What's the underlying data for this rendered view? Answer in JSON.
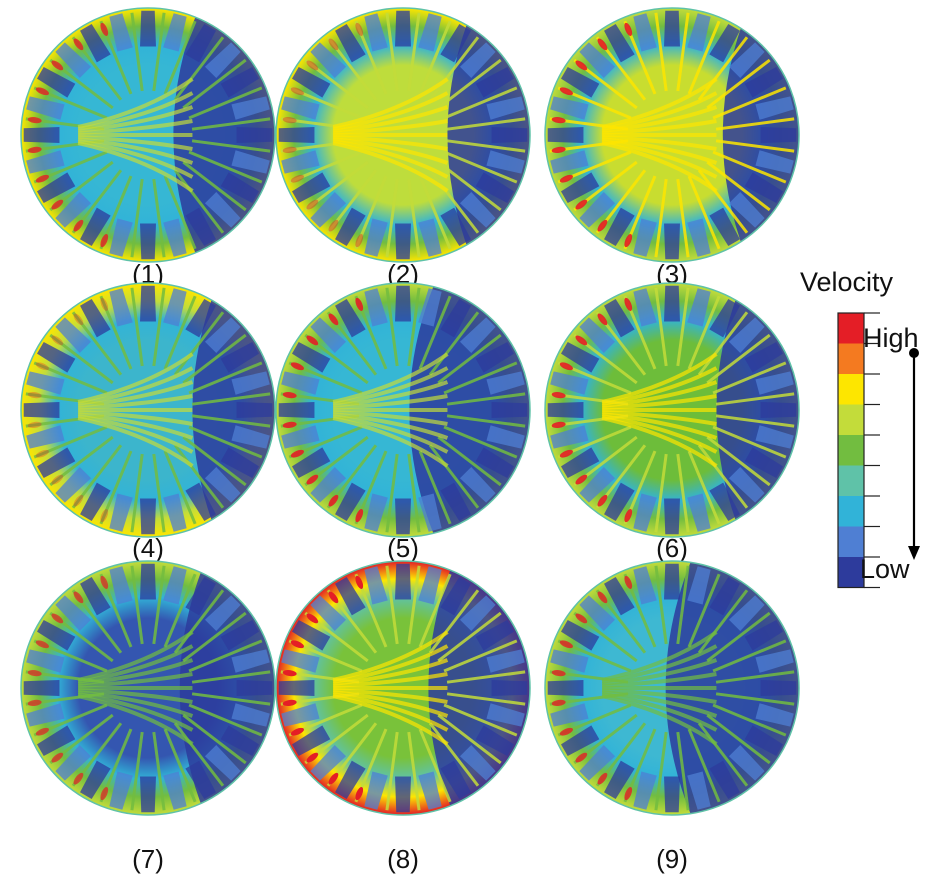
{
  "panels": [
    {
      "label": "(1)",
      "fan_level": 0.55,
      "ring_level": 0.55,
      "core": "#36b7d4",
      "right_dark": 0.6,
      "hot": 0.8
    },
    {
      "label": "(2)",
      "fan_level": 0.65,
      "ring_level": 0.55,
      "core": "#bedd3c",
      "right_dark": 0.45,
      "hot": 0.4
    },
    {
      "label": "(3)",
      "fan_level": 0.7,
      "ring_level": 0.45,
      "core": "#c8dd30",
      "right_dark": 0.4,
      "hot": 0.9
    },
    {
      "label": "(4)",
      "fan_level": 0.5,
      "ring_level": 0.6,
      "core": "#3cb5cc",
      "right_dark": 0.45,
      "hot": 0.3
    },
    {
      "label": "(5)",
      "fan_level": 0.55,
      "ring_level": 0.45,
      "core": "#36b7d4",
      "right_dark": 0.75,
      "hot": 0.9
    },
    {
      "label": "(6)",
      "fan_level": 0.6,
      "ring_level": 0.5,
      "core": "#6dbd3a",
      "right_dark": 0.45,
      "hot": 0.9
    },
    {
      "label": "(7)",
      "fan_level": 0.45,
      "ring_level": 0.5,
      "core": "#3456b0",
      "right_dark": 0.55,
      "hot": 0.7
    },
    {
      "label": "(8)",
      "fan_level": 0.6,
      "ring_level": 0.8,
      "core": "#79c23a",
      "right_dark": 0.6,
      "hot": 1.0
    },
    {
      "label": "(9)",
      "fan_level": 0.45,
      "ring_level": 0.45,
      "core": "#3eb8d2",
      "right_dark": 0.85,
      "hot": 0.8
    }
  ],
  "legend": {
    "title": "Velocity",
    "high": "High",
    "low": "Low",
    "colors": [
      "#e41e26",
      "#f47a20",
      "#fde600",
      "#c3dc3a",
      "#72bd40",
      "#5fc2a8",
      "#31b3d8",
      "#4f7fd3",
      "#2d3b9c"
    ]
  }
}
